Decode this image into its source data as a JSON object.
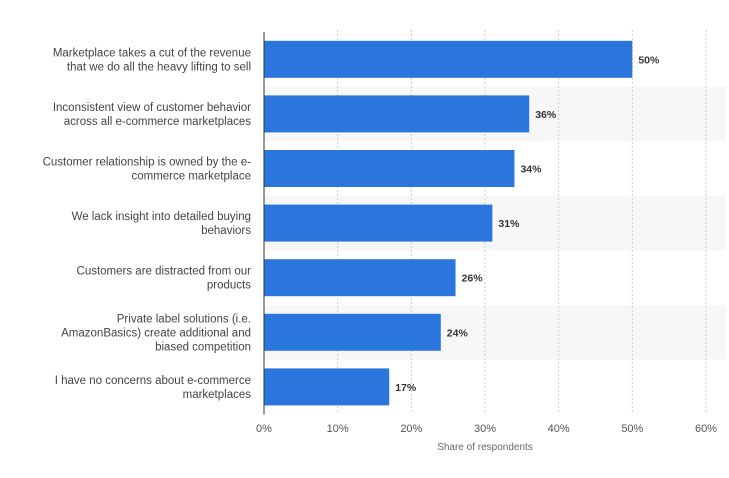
{
  "chart_data": {
    "type": "bar",
    "orientation": "horizontal",
    "title": "",
    "xlabel": "Share of respondents",
    "ylabel": "",
    "categories": [
      [
        "Marketplace takes a cut of the revenue",
        "that we do all the heavy lifting to sell"
      ],
      [
        "Inconsistent view of customer behavior",
        "across all e-commerce marketplaces"
      ],
      [
        "Customer relationship is owned by the e-",
        "commerce marketplace"
      ],
      [
        "We lack insight into detailed buying",
        "behaviors"
      ],
      [
        "Customers are distracted from our",
        "products"
      ],
      [
        "Private label solutions (i.e.",
        "AmazonBasics) create additional and",
        "biased competition"
      ],
      [
        "I have no concerns about e-commerce",
        "marketplaces"
      ]
    ],
    "values": [
      50,
      36,
      34,
      31,
      26,
      24,
      17
    ],
    "value_labels": [
      "50%",
      "36%",
      "34%",
      "31%",
      "26%",
      "24%",
      "17%"
    ],
    "xlim": [
      0,
      60
    ],
    "xticks": [
      0,
      10,
      20,
      30,
      40,
      50,
      60
    ],
    "xtick_labels": [
      "0%",
      "10%",
      "20%",
      "30%",
      "40%",
      "50%",
      "60%"
    ],
    "grid": "vertical-dashed",
    "bar_color": "#2a76dd",
    "band_color": "#f7f7f7"
  }
}
